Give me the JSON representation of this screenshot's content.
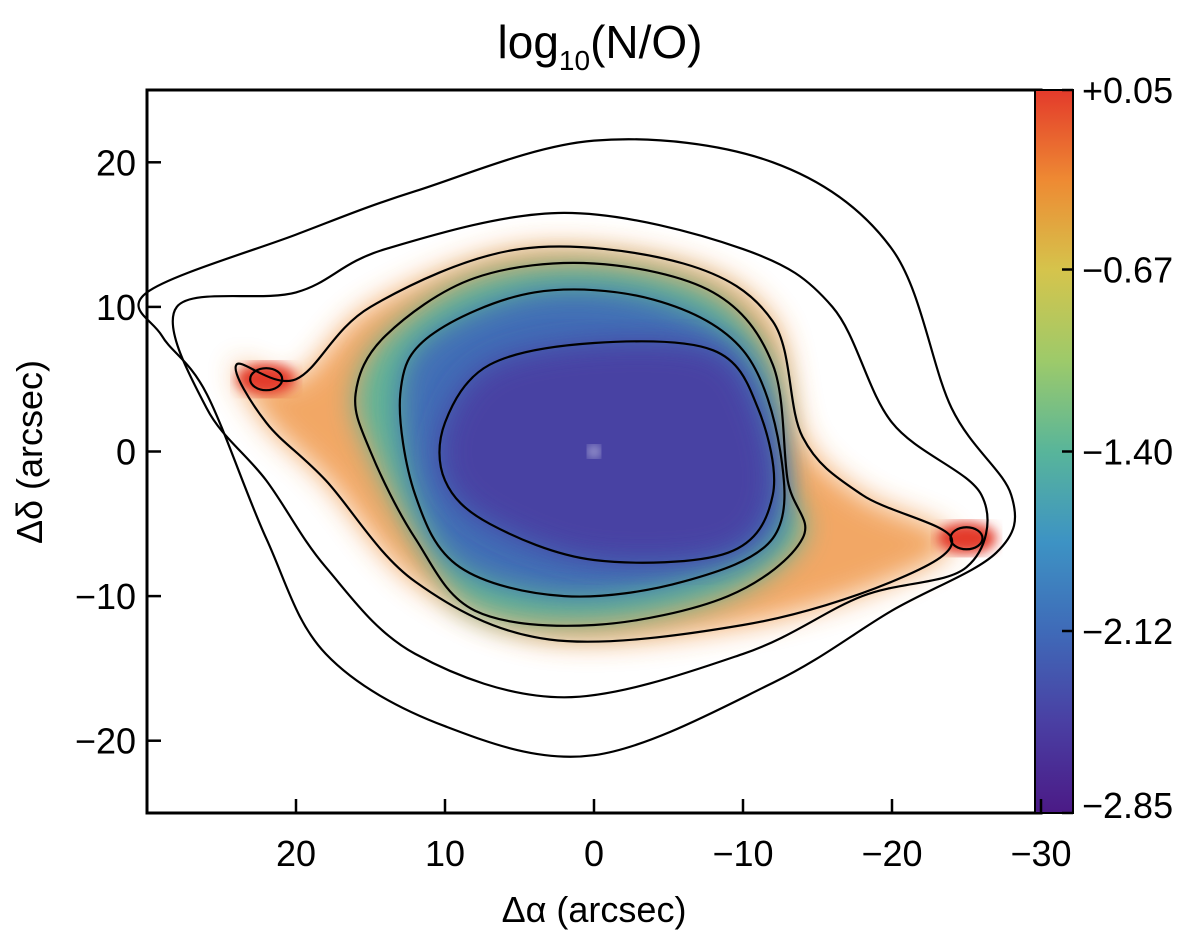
{
  "chart_data": {
    "type": "heatmap",
    "title_main": "log",
    "title_sub": "10",
    "title_rest": "(N/O)",
    "xlabel": "Δα (arcsec)",
    "ylabel": "Δδ (arcsec)",
    "xlim": [
      30,
      -30
    ],
    "ylim": [
      -25,
      25
    ],
    "x_ticks": [
      20,
      10,
      0,
      -10,
      -20,
      -30
    ],
    "x_tick_labels": [
      "20",
      "10",
      "0",
      "−10",
      "−20",
      "−30"
    ],
    "y_ticks": [
      20,
      10,
      0,
      -10,
      -20
    ],
    "y_tick_labels": [
      "20",
      "10",
      "0",
      "−10",
      "−20"
    ],
    "colorbar": {
      "range": [
        -2.85,
        0.05
      ],
      "tick_values": [
        0.05,
        -0.67,
        -1.4,
        -2.12,
        -2.85
      ],
      "tick_labels": [
        "+0.05",
        "−0.67",
        "−1.40",
        "−2.12",
        "−2.85"
      ],
      "colors": [
        "#4b1a86",
        "#4a3fa3",
        "#3f6ab8",
        "#3d93c4",
        "#58b59a",
        "#9dca6a",
        "#d5c44c",
        "#ee8a33",
        "#e33a2b"
      ]
    },
    "regions": [
      {
        "name": "central-low-ratio",
        "center": [
          0,
          0
        ],
        "value": -2.6
      },
      {
        "name": "inner-ring",
        "center": [
          0,
          0
        ],
        "value": -2.1
      },
      {
        "name": "outer-ring",
        "center": [
          0,
          0
        ],
        "value": -1.4
      },
      {
        "name": "east-knot",
        "center": [
          22,
          5
        ],
        "value": 0.0
      },
      {
        "name": "west-knot",
        "center": [
          -25,
          -6
        ],
        "value": 0.0
      }
    ],
    "contours": [
      {
        "level": 1,
        "points": [
          [
            30,
            11
          ],
          [
            20,
            15
          ],
          [
            12,
            18
          ],
          [
            0,
            21.5
          ],
          [
            -12,
            20
          ],
          [
            -20,
            14
          ],
          [
            -24,
            3
          ],
          [
            -28,
            -3
          ],
          [
            -27,
            -7
          ],
          [
            -20,
            -11
          ],
          [
            -12,
            -16
          ],
          [
            0,
            -21
          ],
          [
            10,
            -19
          ],
          [
            18,
            -14
          ],
          [
            22,
            -6
          ],
          [
            26,
            4
          ],
          [
            29,
            8
          ]
        ]
      },
      {
        "level": 2,
        "points": [
          [
            28,
            10
          ],
          [
            20,
            11
          ],
          [
            14,
            14
          ],
          [
            2,
            16.5
          ],
          [
            -10,
            14
          ],
          [
            -16,
            10
          ],
          [
            -20,
            2
          ],
          [
            -26,
            -3
          ],
          [
            -25,
            -8
          ],
          [
            -18,
            -10
          ],
          [
            -10,
            -14
          ],
          [
            2,
            -17
          ],
          [
            12,
            -14
          ],
          [
            18,
            -8
          ],
          [
            22,
            -2
          ],
          [
            26,
            3
          ]
        ]
      },
      {
        "level": 3,
        "points": [
          [
            24,
            6
          ],
          [
            20,
            5
          ],
          [
            15,
            10
          ],
          [
            5,
            14
          ],
          [
            -6,
            13
          ],
          [
            -12,
            9
          ],
          [
            -14,
            1
          ],
          [
            -18,
            -3
          ],
          [
            -24,
            -6
          ],
          [
            -20,
            -9
          ],
          [
            -10,
            -12
          ],
          [
            3,
            -13
          ],
          [
            12,
            -9
          ],
          [
            18,
            -2
          ],
          [
            22,
            2
          ]
        ]
      },
      {
        "level": 4,
        "points": [
          [
            16,
            4
          ],
          [
            14,
            8
          ],
          [
            8,
            12
          ],
          [
            0,
            13
          ],
          [
            -8,
            11
          ],
          [
            -12,
            6
          ],
          [
            -13,
            -2
          ],
          [
            -14,
            -6
          ],
          [
            -9,
            -10
          ],
          [
            0,
            -12
          ],
          [
            8,
            -11
          ],
          [
            12,
            -6
          ],
          [
            15,
            0
          ]
        ]
      },
      {
        "level": 5,
        "points": [
          [
            13,
            4
          ],
          [
            11,
            8
          ],
          [
            4,
            11
          ],
          [
            -4,
            10.5
          ],
          [
            -10,
            7
          ],
          [
            -12.5,
            0
          ],
          [
            -12,
            -6
          ],
          [
            -6,
            -9
          ],
          [
            2,
            -10
          ],
          [
            9,
            -8
          ],
          [
            12,
            -3
          ]
        ]
      },
      {
        "level": 6,
        "points": [
          [
            10,
            2
          ],
          [
            7,
            6
          ],
          [
            0,
            7.5
          ],
          [
            -8,
            7
          ],
          [
            -11,
            3
          ],
          [
            -12,
            -3
          ],
          [
            -9,
            -7
          ],
          [
            0,
            -7.5
          ],
          [
            7,
            -5
          ],
          [
            10,
            -2
          ]
        ]
      }
    ]
  }
}
